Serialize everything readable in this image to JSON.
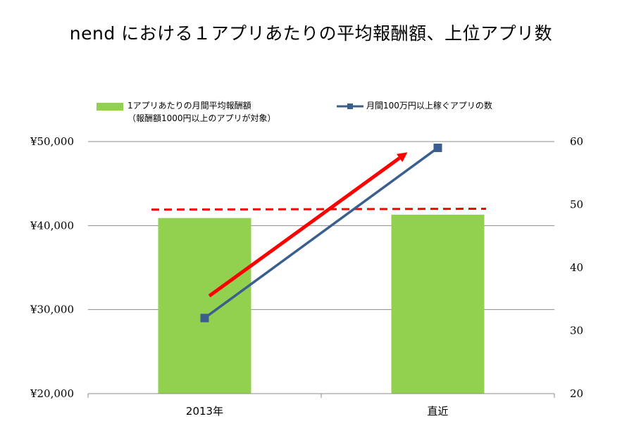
{
  "title": "nend における１アプリあたりの平均報酬額、上位アプリ数",
  "legend": {
    "bar_line1": "1アプリあたりの月間平均報酬額",
    "bar_line2": "（報酬額1000円以上のアプリが対象）",
    "line": "月間100万円以上稼ぐアプリの数"
  },
  "colors": {
    "bar": "#92d050",
    "line": "#3a5f8f",
    "dashed": "#ff0000",
    "arrow": "#ff0000",
    "grid": "#8c8c8c"
  },
  "chart_data": {
    "type": "bar",
    "categories": [
      "2013年",
      "直近"
    ],
    "series": [
      {
        "name": "1アプリあたりの月間平均報酬額（報酬額1000円以上のアプリが対象）",
        "type": "bar",
        "axis": "left",
        "values": [
          40900,
          41300
        ]
      },
      {
        "name": "月間100万円以上稼ぐアプリの数",
        "type": "line",
        "axis": "right",
        "marker": "square",
        "values": [
          32,
          59
        ]
      }
    ],
    "y_left": {
      "range": [
        20000,
        50000
      ],
      "ticks": [
        20000,
        30000,
        40000,
        50000
      ],
      "tick_labels": [
        "¥20,000",
        "¥30,000",
        "¥40,000",
        "¥50,000"
      ]
    },
    "y_right": {
      "range": [
        20,
        60
      ],
      "ticks": [
        20,
        30,
        40,
        50,
        60
      ],
      "tick_labels": [
        "20",
        "30",
        "40",
        "50",
        "60"
      ]
    },
    "annotations": {
      "dashed_line": {
        "axis": "left",
        "values": [
          41900,
          42000
        ]
      },
      "arrow": {
        "axis": "right",
        "from": [
          0.02,
          35.5
        ],
        "to": [
          0.87,
          58.3
        ]
      }
    },
    "grid": true,
    "legend_position": "top"
  }
}
